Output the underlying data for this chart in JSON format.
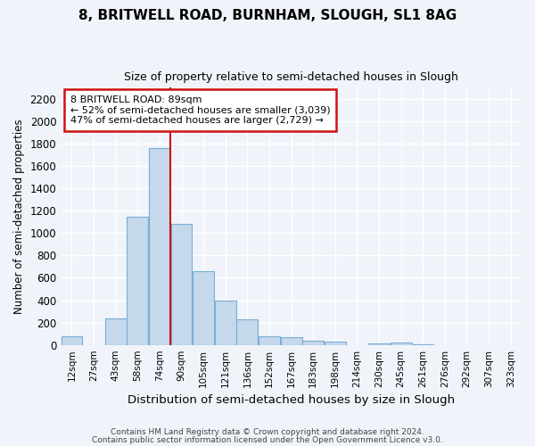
{
  "title1": "8, BRITWELL ROAD, BURNHAM, SLOUGH, SL1 8AG",
  "title2": "Size of property relative to semi-detached houses in Slough",
  "xlabel": "Distribution of semi-detached houses by size in Slough",
  "ylabel": "Number of semi-detached properties",
  "categories": [
    "12sqm",
    "27sqm",
    "43sqm",
    "58sqm",
    "74sqm",
    "90sqm",
    "105sqm",
    "121sqm",
    "136sqm",
    "152sqm",
    "167sqm",
    "183sqm",
    "198sqm",
    "214sqm",
    "230sqm",
    "245sqm",
    "261sqm",
    "276sqm",
    "292sqm",
    "307sqm",
    "323sqm"
  ],
  "values": [
    80,
    0,
    240,
    1150,
    1760,
    1080,
    660,
    400,
    230,
    80,
    70,
    35,
    30,
    0,
    15,
    20,
    5,
    0,
    0,
    0,
    0
  ],
  "bar_color": "#c5d8ec",
  "bar_edge_color": "#7aaed4",
  "red_line_x": 4.5,
  "annotation_title": "8 BRITWELL ROAD: 89sqm",
  "annotation_line1": "← 52% of semi-detached houses are smaller (3,039)",
  "annotation_line2": "47% of semi-detached houses are larger (2,729) →",
  "footer1": "Contains HM Land Registry data © Crown copyright and database right 2024.",
  "footer2": "Contains public sector information licensed under the Open Government Licence v3.0.",
  "ylim": [
    0,
    2300
  ],
  "yticks": [
    0,
    200,
    400,
    600,
    800,
    1000,
    1200,
    1400,
    1600,
    1800,
    2000,
    2200
  ],
  "bg_color": "#f0f4fa",
  "grid_color": "#d0d8e8",
  "annotation_box_facecolor": "#ffffff",
  "annotation_box_edgecolor": "#cc1111",
  "red_line_color": "#cc1111"
}
